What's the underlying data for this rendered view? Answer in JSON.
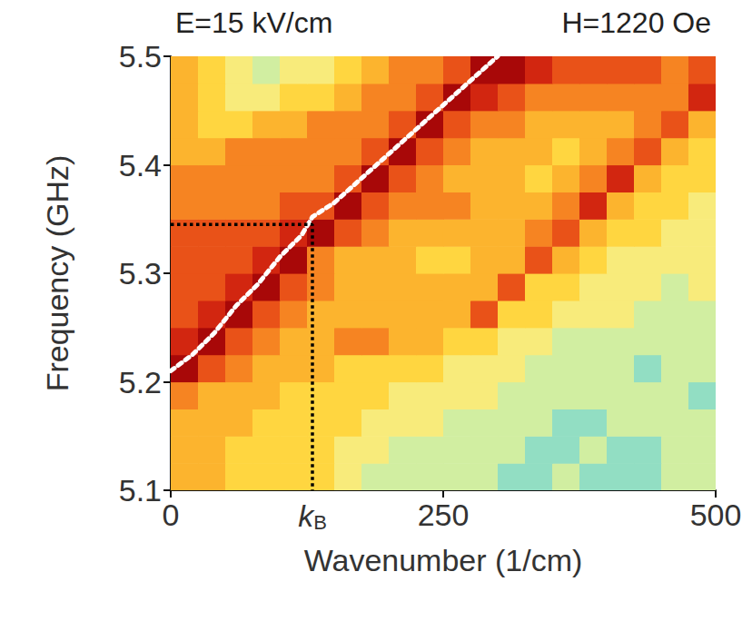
{
  "chart_data": {
    "type": "heatmap",
    "title_left": "E=15 kV/cm",
    "title_right": "H=1220 Oe",
    "x_label": "Wavenumber (1/cm)",
    "y_label": "Frequency (GHz)",
    "xlim": [
      0,
      500
    ],
    "xticks": [
      0,
      250,
      500
    ],
    "ylim": [
      5.1,
      5.5
    ],
    "yticks": [
      5.1,
      5.2,
      5.3,
      5.4,
      5.5
    ],
    "grid": false,
    "zlim": [
      0,
      10
    ],
    "cells": {
      "x_edges": [
        0,
        25,
        50,
        75,
        100,
        125,
        150,
        175,
        200,
        225,
        250,
        275,
        300,
        325,
        350,
        375,
        400,
        425,
        450,
        475,
        500
      ],
      "y_edges": [
        5.1,
        5.125,
        5.15,
        5.175,
        5.2,
        5.225,
        5.25,
        5.275,
        5.3,
        5.325,
        5.35,
        5.375,
        5.4,
        5.425,
        5.45,
        5.475,
        5.5
      ],
      "z": [
        [
          6,
          6,
          5,
          5,
          5,
          5,
          4,
          3,
          3,
          3,
          3,
          3,
          2,
          2,
          3,
          2,
          2,
          2,
          3,
          3
        ],
        [
          6,
          6,
          5,
          5,
          5,
          5,
          4,
          4,
          3,
          3,
          3,
          3,
          3,
          2,
          2,
          3,
          2,
          2,
          3,
          3
        ],
        [
          6,
          6,
          6,
          5,
          5,
          5,
          5,
          4,
          4,
          4,
          3,
          3,
          3,
          3,
          2,
          2,
          3,
          3,
          3,
          3
        ],
        [
          7,
          6,
          6,
          6,
          5,
          5,
          5,
          5,
          4,
          4,
          4,
          4,
          3,
          3,
          3,
          3,
          3,
          3,
          3,
          2
        ],
        [
          10,
          8,
          7,
          6,
          6,
          6,
          5,
          5,
          5,
          5,
          4,
          4,
          4,
          3,
          3,
          3,
          3,
          2,
          3,
          3
        ],
        [
          9,
          10,
          8,
          7,
          6,
          6,
          7,
          7,
          6,
          6,
          5,
          5,
          4,
          4,
          3,
          3,
          3,
          3,
          3,
          3
        ],
        [
          8,
          9,
          10,
          8,
          7,
          6,
          6,
          6,
          6,
          6,
          6,
          8,
          5,
          5,
          4,
          4,
          4,
          3,
          3,
          3
        ],
        [
          8,
          8,
          9,
          10,
          8,
          7,
          6,
          6,
          6,
          6,
          6,
          6,
          8,
          5,
          5,
          4,
          4,
          4,
          3,
          4
        ],
        [
          8,
          8,
          8,
          9,
          10,
          7,
          6,
          6,
          6,
          5,
          5,
          6,
          6,
          8,
          6,
          5,
          4,
          4,
          4,
          4
        ],
        [
          8,
          8,
          8,
          8,
          9,
          10,
          8,
          7,
          6,
          6,
          6,
          6,
          6,
          7,
          8,
          6,
          5,
          5,
          4,
          4
        ],
        [
          7,
          7,
          7,
          7,
          8,
          8,
          10,
          8,
          7,
          7,
          7,
          6,
          6,
          6,
          7,
          9,
          6,
          5,
          5,
          4
        ],
        [
          7,
          7,
          7,
          7,
          7,
          7,
          8,
          10,
          8,
          7,
          6,
          6,
          6,
          5,
          6,
          7,
          9,
          6,
          5,
          5
        ],
        [
          6,
          6,
          7,
          7,
          7,
          7,
          7,
          8,
          10,
          8,
          7,
          6,
          6,
          6,
          5,
          6,
          7,
          8,
          6,
          5
        ],
        [
          6,
          5,
          5,
          6,
          6,
          7,
          7,
          7,
          8,
          10,
          8,
          7,
          7,
          6,
          6,
          6,
          6,
          7,
          8,
          6
        ],
        [
          6,
          5,
          4,
          4,
          5,
          5,
          6,
          7,
          7,
          8,
          10,
          9,
          8,
          7,
          7,
          7,
          7,
          7,
          7,
          9
        ],
        [
          6,
          5,
          4,
          3,
          4,
          4,
          5,
          6,
          7,
          7,
          8,
          10,
          10,
          9,
          8,
          8,
          8,
          8,
          7,
          8
        ]
      ]
    },
    "curve": {
      "color": "#ffffff",
      "line_style": "dotted",
      "x": [
        0,
        20,
        40,
        60,
        80,
        100,
        120,
        130,
        150,
        200,
        250,
        300
      ],
      "y": [
        5.21,
        5.225,
        5.245,
        5.27,
        5.29,
        5.315,
        5.335,
        5.352,
        5.365,
        5.41,
        5.455,
        5.5
      ]
    },
    "marker_lines": {
      "color": "#000000",
      "line_style": "dotted",
      "x": 130,
      "y": 5.345,
      "label": {
        "text": "k",
        "subscript": "B"
      }
    }
  }
}
